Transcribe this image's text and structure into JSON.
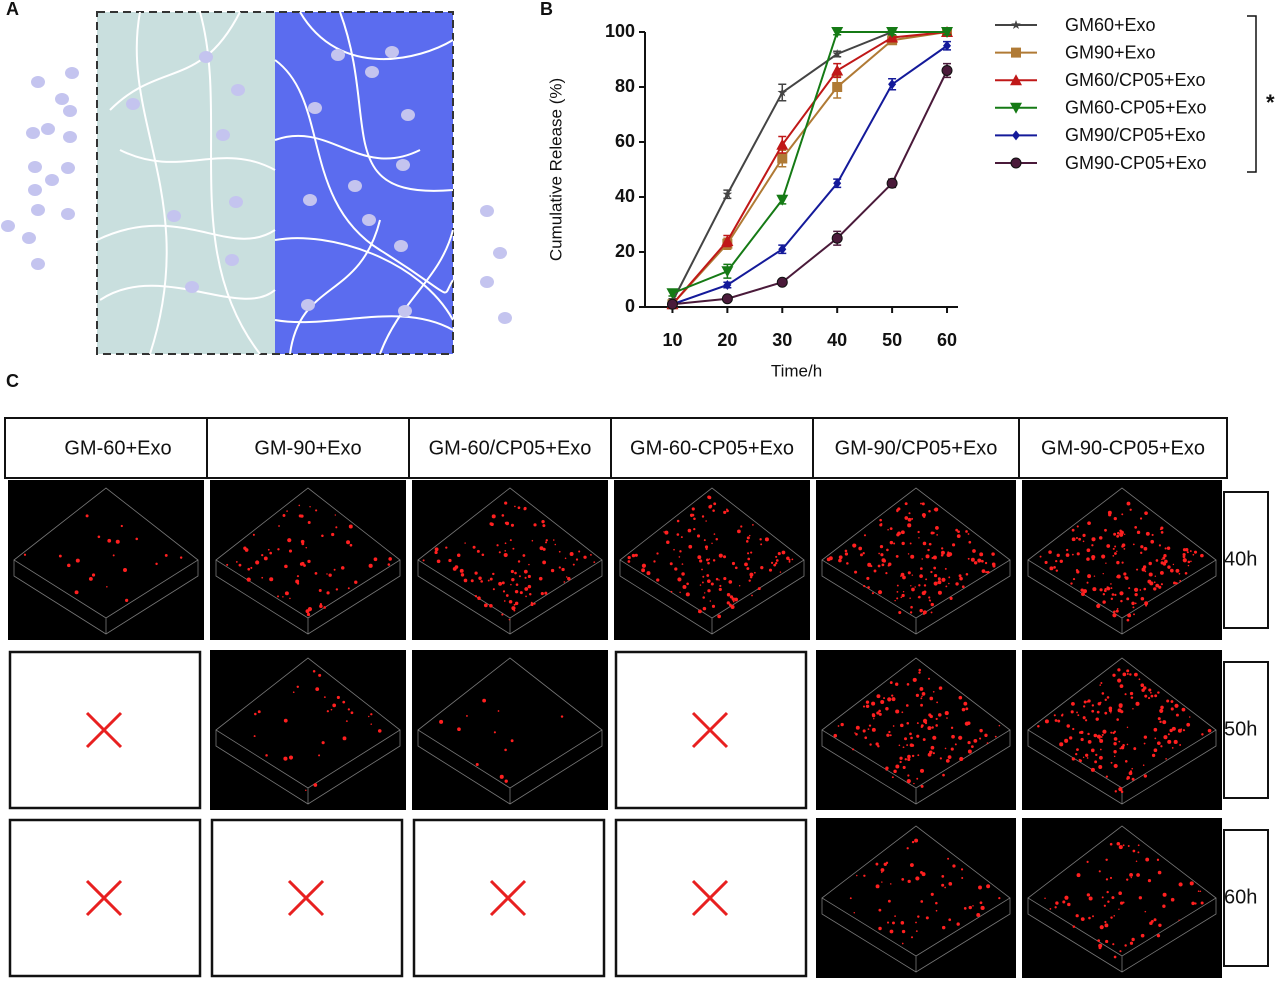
{
  "panels": [
    "A",
    "B",
    "C"
  ],
  "chart_data": {
    "type": "line",
    "xlabel": "Time/h",
    "ylabel": "Cumulative Release (%)",
    "x": [
      10,
      20,
      30,
      40,
      50,
      60
    ],
    "xlim": [
      5,
      62
    ],
    "xticks": [
      10,
      20,
      30,
      40,
      50,
      60
    ],
    "ylim": [
      0,
      100
    ],
    "yticks": [
      0,
      20,
      40,
      60,
      80,
      100
    ],
    "series": [
      {
        "name": "GM60+Exo",
        "color": "#444444",
        "marker": "star",
        "values": [
          2,
          41,
          78,
          92,
          100,
          100
        ],
        "errors": [
          1,
          1.5,
          3,
          1,
          1,
          1
        ]
      },
      {
        "name": "GM90+Exo",
        "color": "#b07a35",
        "marker": "square",
        "values": [
          1,
          23,
          54,
          80,
          97,
          100
        ],
        "errors": [
          1,
          2,
          3,
          4,
          1,
          1
        ]
      },
      {
        "name": "GM60/CP05+Exo",
        "color": "#c01818",
        "marker": "triangle",
        "values": [
          1,
          24,
          59,
          86,
          98,
          100
        ],
        "errors": [
          1,
          2,
          3,
          2.5,
          1,
          1
        ]
      },
      {
        "name": "GM60-CP05+Exo",
        "color": "#157a15",
        "marker": "triangle-down",
        "values": [
          5,
          13,
          39,
          100,
          100,
          100
        ],
        "errors": [
          1,
          2.5,
          1.5,
          1,
          1,
          1
        ]
      },
      {
        "name": "GM90/CP05+Exo",
        "color": "#141a9a",
        "marker": "diamond",
        "values": [
          1,
          8,
          21,
          45,
          81,
          95
        ],
        "errors": [
          1,
          1,
          1.5,
          1.5,
          2,
          1.5
        ]
      },
      {
        "name": "GM90-CP05+Exo",
        "color": "#4a1a3a",
        "marker": "circle",
        "values": [
          1,
          3,
          9,
          25,
          45,
          86
        ],
        "errors": [
          1,
          1,
          1,
          2.5,
          1.5,
          2.5
        ]
      }
    ],
    "significance": "*"
  },
  "grid": {
    "columns": [
      "GM-60+Exo",
      "GM-90+Exo",
      "GM-60/CP05+Exo",
      "GM-60-CP05+Exo",
      "GM-90/CP05+Exo",
      "GM-90-CP05+Exo"
    ],
    "rows": [
      "40h",
      "50h",
      "60h"
    ]
  }
}
